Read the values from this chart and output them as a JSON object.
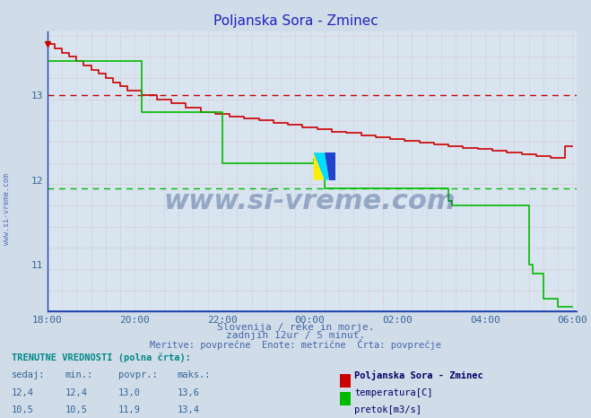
{
  "title": "Poljanska Sora - Zminec",
  "title_color": "#2222bb",
  "bg_color": "#d0dce8",
  "plot_bg_color": "#d8e4f0",
  "grid_color": "#c8a0a0",
  "axis_color": "#2244aa",
  "xlim_min": 0,
  "xlim_max": 145,
  "ylim_min": 10.45,
  "ylim_max": 13.75,
  "yticks": [
    11,
    12,
    13
  ],
  "xtick_labels": [
    "18:00",
    "20:00",
    "22:00",
    "00:00",
    "02:00",
    "04:00",
    "06:00"
  ],
  "xtick_positions": [
    0,
    24,
    48,
    72,
    96,
    120,
    144
  ],
  "red_hline": 13.0,
  "green_hline": 11.9,
  "temp_color": "#cc0000",
  "flow_color": "#00bb00",
  "subtitle1": "Slovenija / reke in morje.",
  "subtitle2": "zadnjih 12ur / 5 minut.",
  "subtitle3": "Meritve: povprečne  Enote: metrične  Črta: povprečje",
  "footer_color": "#4466aa",
  "table_header": "TRENUTNE VREDNOSTI (polna črta):",
  "col_headers": [
    "sedaj:",
    "min.:",
    "povpr.:",
    "maks.:"
  ],
  "row1_vals": [
    "12,4",
    "12,4",
    "13,0",
    "13,6"
  ],
  "row2_vals": [
    "10,5",
    "10,5",
    "11,9",
    "13,4"
  ],
  "legend_title": "Poljanska Sora - Zminec",
  "legend_labels": [
    "temperatura[C]",
    "pretok[m3/s]"
  ],
  "watermark": "www.si-vreme.com",
  "left_text": "www.si-vreme.com"
}
